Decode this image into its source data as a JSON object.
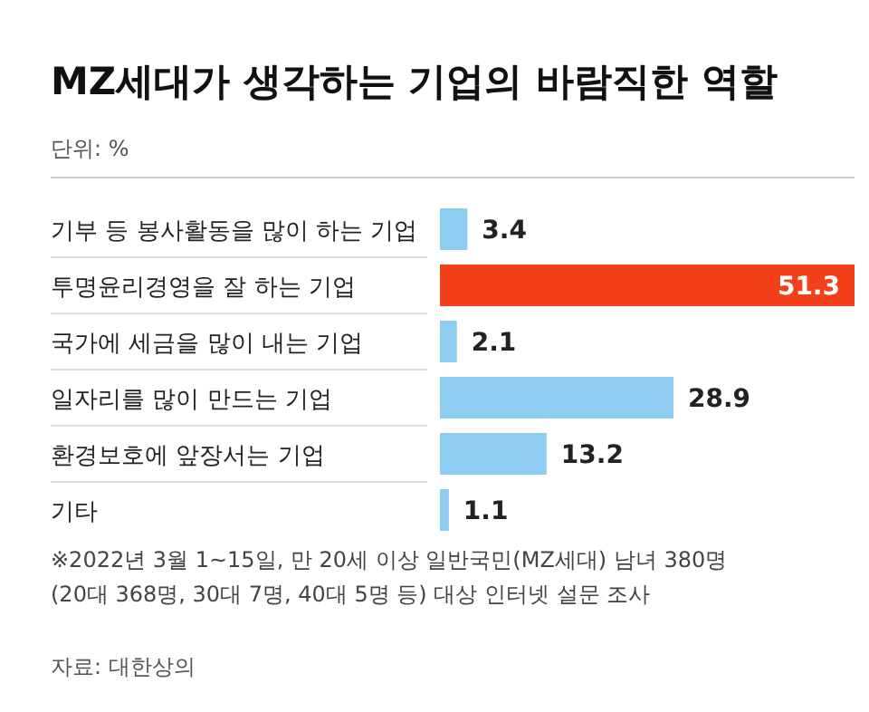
{
  "chart_data": {
    "type": "bar",
    "orientation": "horizontal",
    "title": "MZ세대가 생각하는 기업의 바람직한 역할",
    "categories": [
      "기부 등 봉사활동을 많이 하는 기업",
      "투명윤리경영을 잘 하는 기업",
      "국가에 세금을 많이 내는 기업",
      "일자리를 많이 만드는 기업",
      "환경보호에 앞장서는 기업",
      "기타"
    ],
    "values": [
      3.4,
      51.3,
      2.1,
      28.9,
      13.2,
      1.1
    ],
    "colors": [
      "#8fcdf0",
      "#f2401b",
      "#8fcdf0",
      "#8fcdf0",
      "#8fcdf0",
      "#8fcdf0"
    ],
    "data_labels": true,
    "annotations": [
      "단위: %",
      "※2022년 3월 1~15일, 만 20세 이상 일반국민(MZ세대) 남녀 380명 (20대 368명, 30대 7명, 40대 5명 등) 대상 인터넷 설문 조사",
      "자료: 대한상의"
    ]
  }
}
